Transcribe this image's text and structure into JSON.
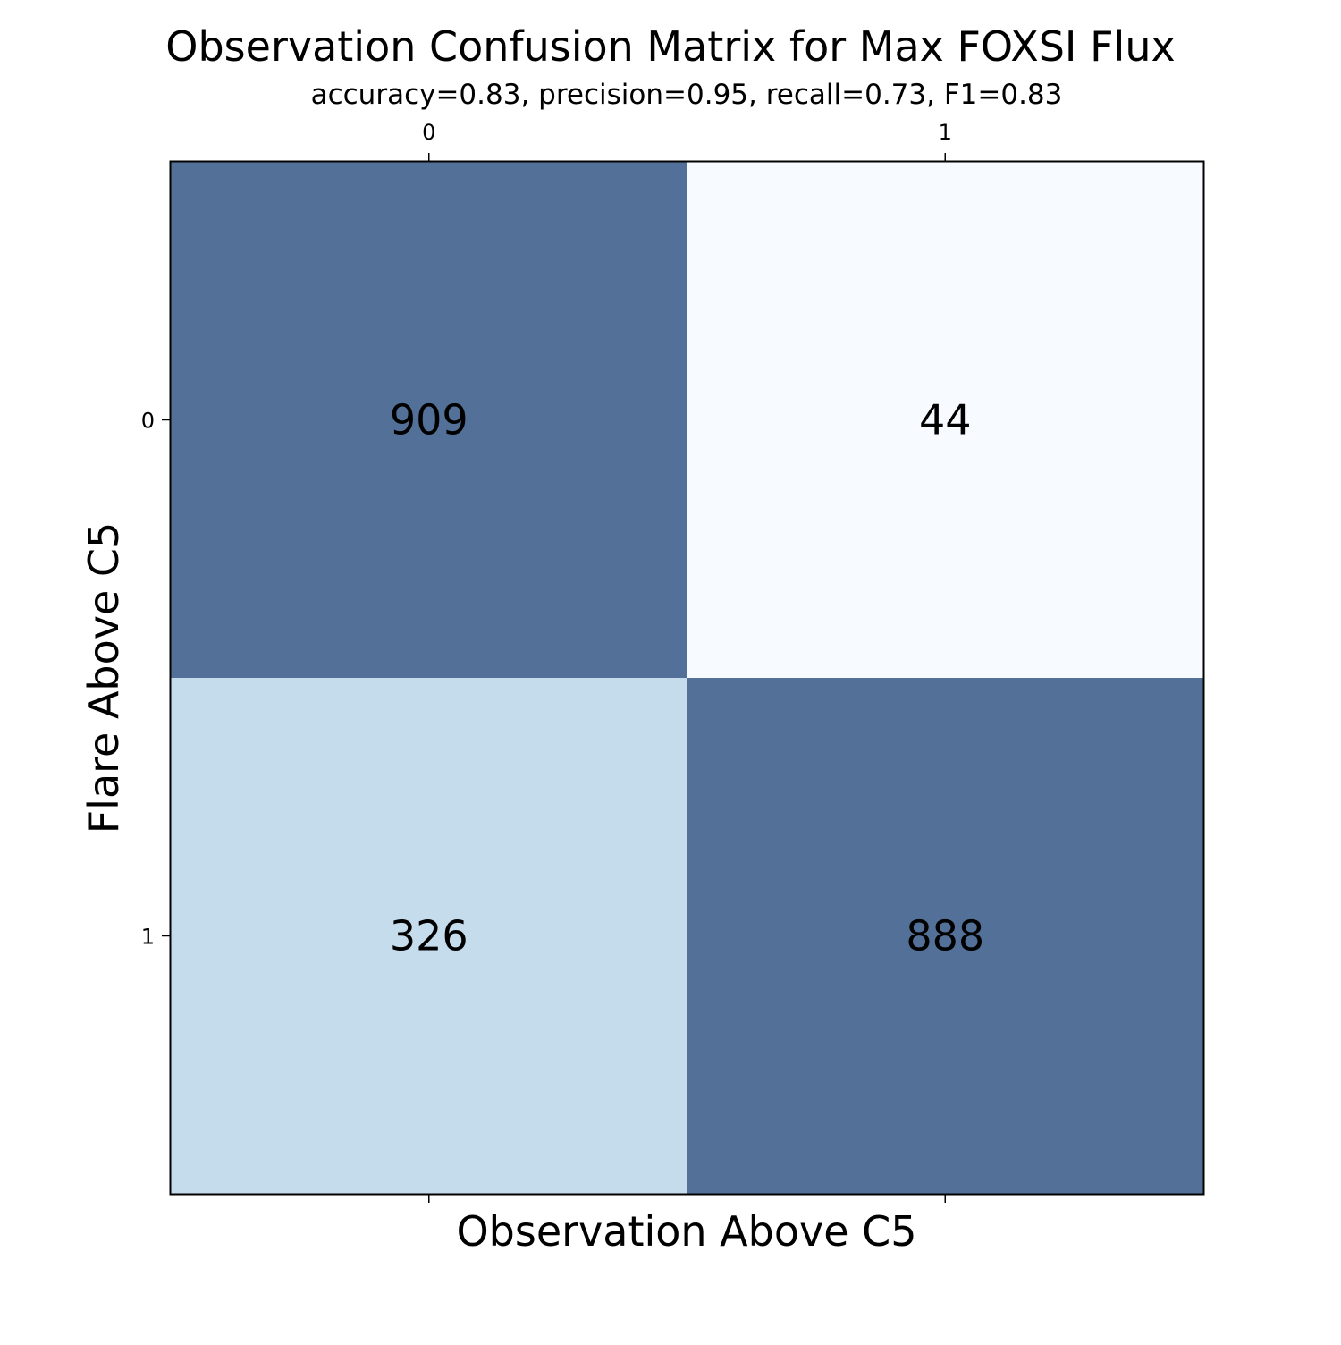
{
  "chart_data": {
    "type": "heatmap",
    "title": "Observation Confusion Matrix for Max FOXSI Flux",
    "subtitle": "accuracy=0.83, precision=0.95, recall=0.73, F1=0.83",
    "xlabel": "Observation Above C5",
    "ylabel": "Flare Above C5",
    "x_categories": [
      "0",
      "1"
    ],
    "y_categories": [
      "0",
      "1"
    ],
    "values": [
      [
        909,
        44
      ],
      [
        326,
        888
      ]
    ],
    "cell_colors": [
      [
        "#537198",
        "#f7fbff"
      ],
      [
        "#c5dcec",
        "#537198"
      ]
    ],
    "x_tick_position": "top",
    "grid": false,
    "legend": "none"
  }
}
